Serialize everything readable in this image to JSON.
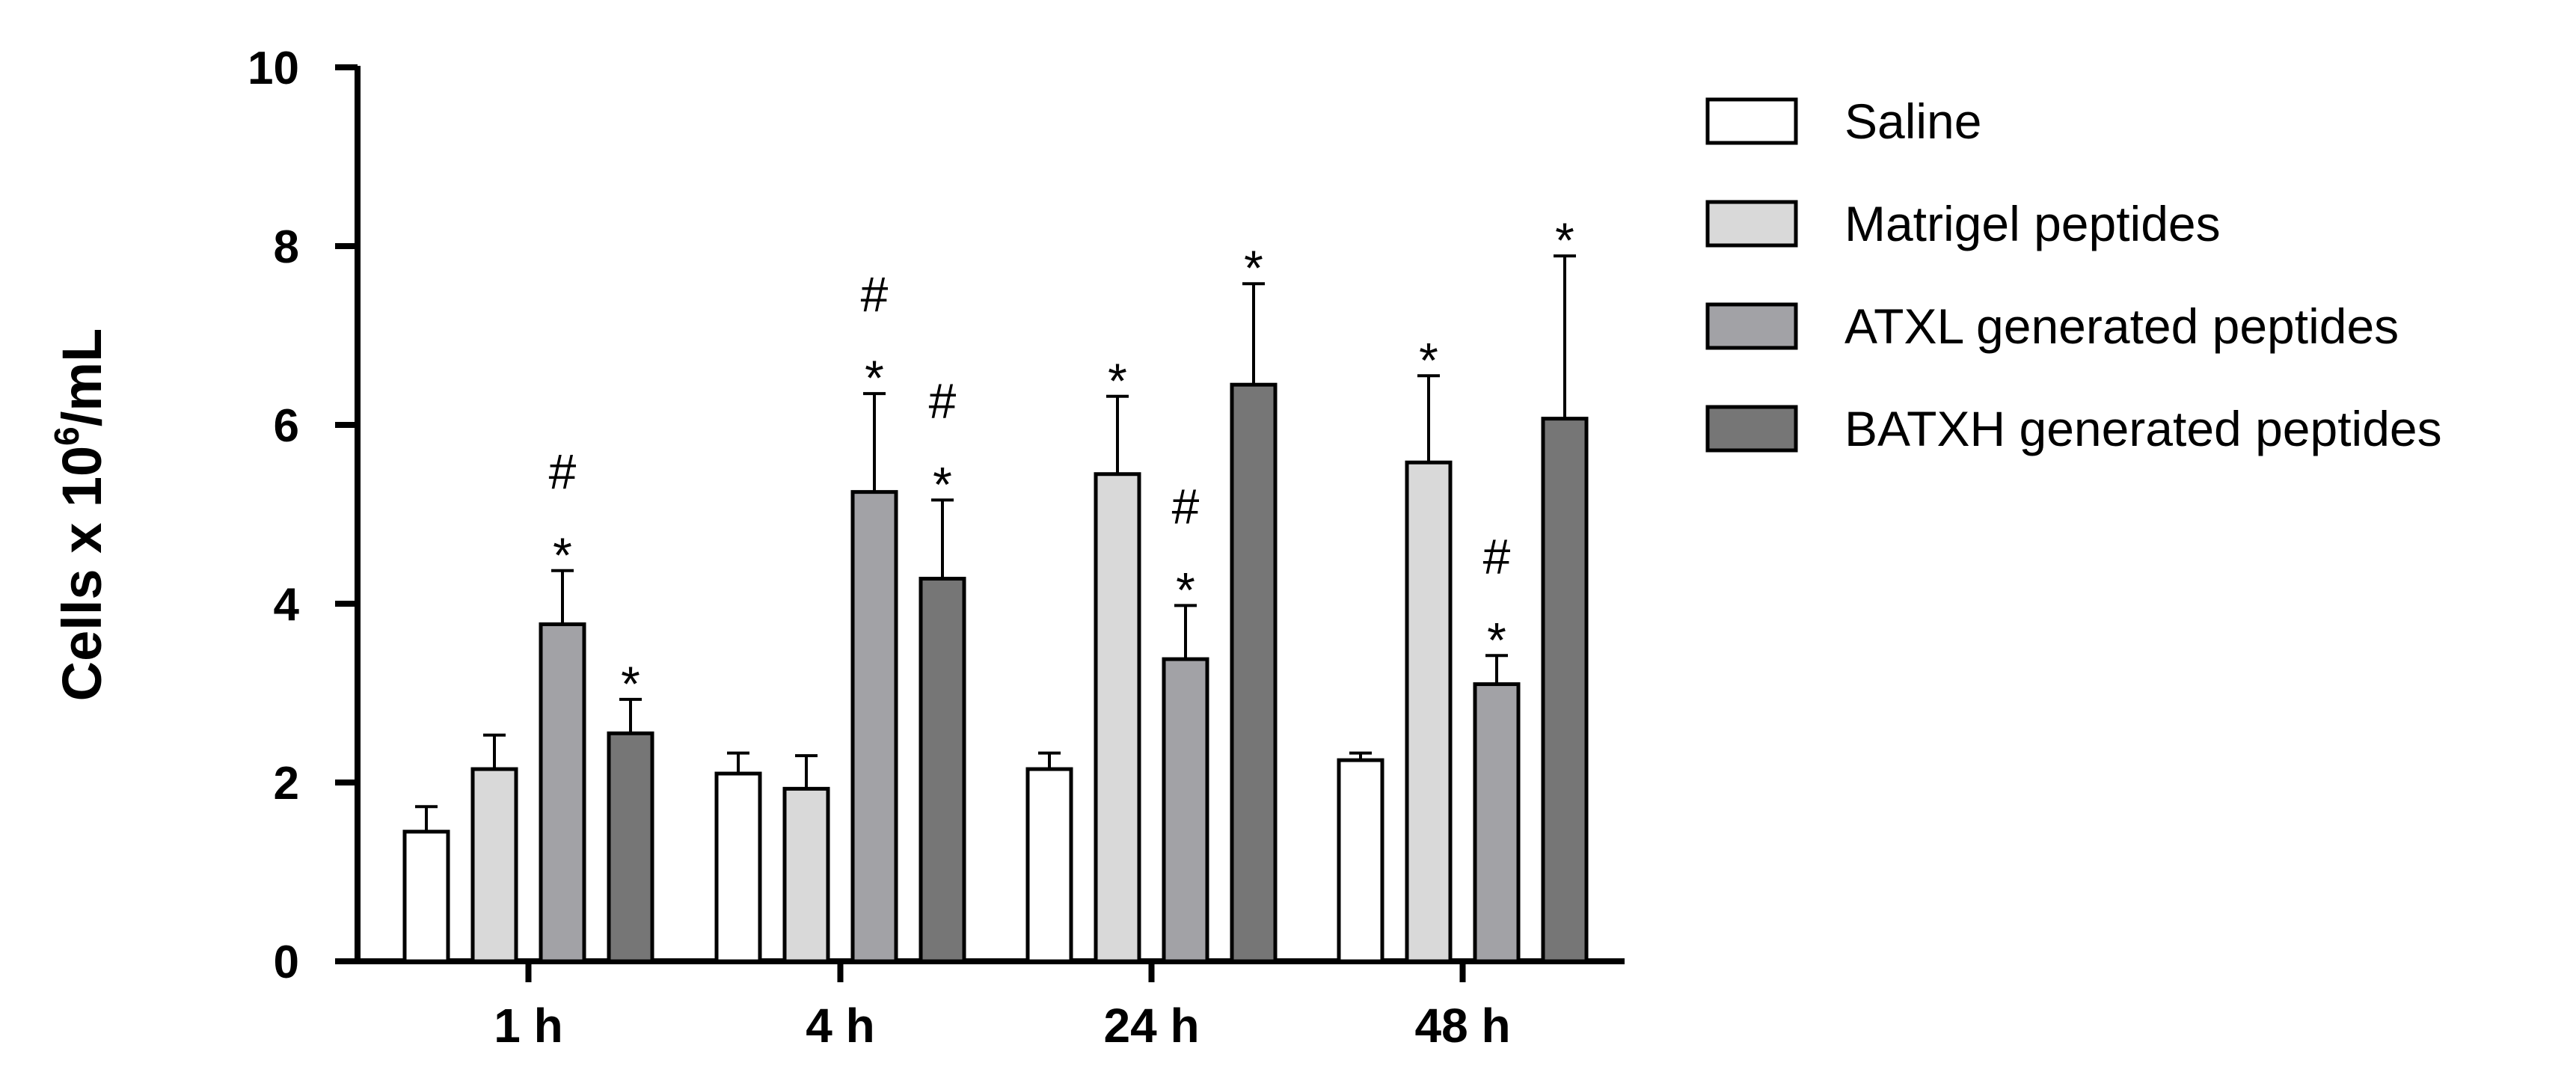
{
  "chart_data": {
    "type": "bar",
    "title": "",
    "xlabel": "",
    "ylabel": "Cells x 10",
    "ylabel_superscript": "6",
    "ylabel_suffix": "/mL",
    "ylim": [
      0,
      10
    ],
    "yticks": [
      "0",
      "2",
      "4",
      "6",
      "8",
      "10"
    ],
    "categories": [
      "1 h",
      "4 h",
      "24 h",
      "48 h"
    ],
    "legend_position": "top-right",
    "grid": false,
    "series": [
      {
        "name": "Saline",
        "color": "#ffffff",
        "values": [
          1.45,
          2.1,
          2.15,
          2.25
        ],
        "errors": [
          0.28,
          0.23,
          0.18,
          0.08
        ],
        "marks": [
          "",
          "",
          "",
          ""
        ]
      },
      {
        "name": "Matrigel peptides",
        "color": "#d9d9d9",
        "values": [
          2.15,
          1.93,
          5.45,
          5.58
        ],
        "errors": [
          0.38,
          0.37,
          0.87,
          0.97
        ],
        "marks": [
          "",
          "",
          "*",
          "*"
        ]
      },
      {
        "name": "ATXL generated peptides",
        "color": "#a2a2a6",
        "values": [
          3.77,
          5.25,
          3.38,
          3.1
        ],
        "errors": [
          0.6,
          1.1,
          0.6,
          0.32
        ],
        "marks": [
          "#*",
          "#*",
          "#*",
          "#*"
        ]
      },
      {
        "name": "BATXH generated peptides",
        "color": "#767676",
        "values": [
          2.55,
          4.28,
          6.45,
          6.07
        ],
        "errors": [
          0.38,
          0.88,
          1.13,
          1.82
        ],
        "marks": [
          "*",
          "#*",
          "*",
          "*"
        ]
      }
    ]
  }
}
